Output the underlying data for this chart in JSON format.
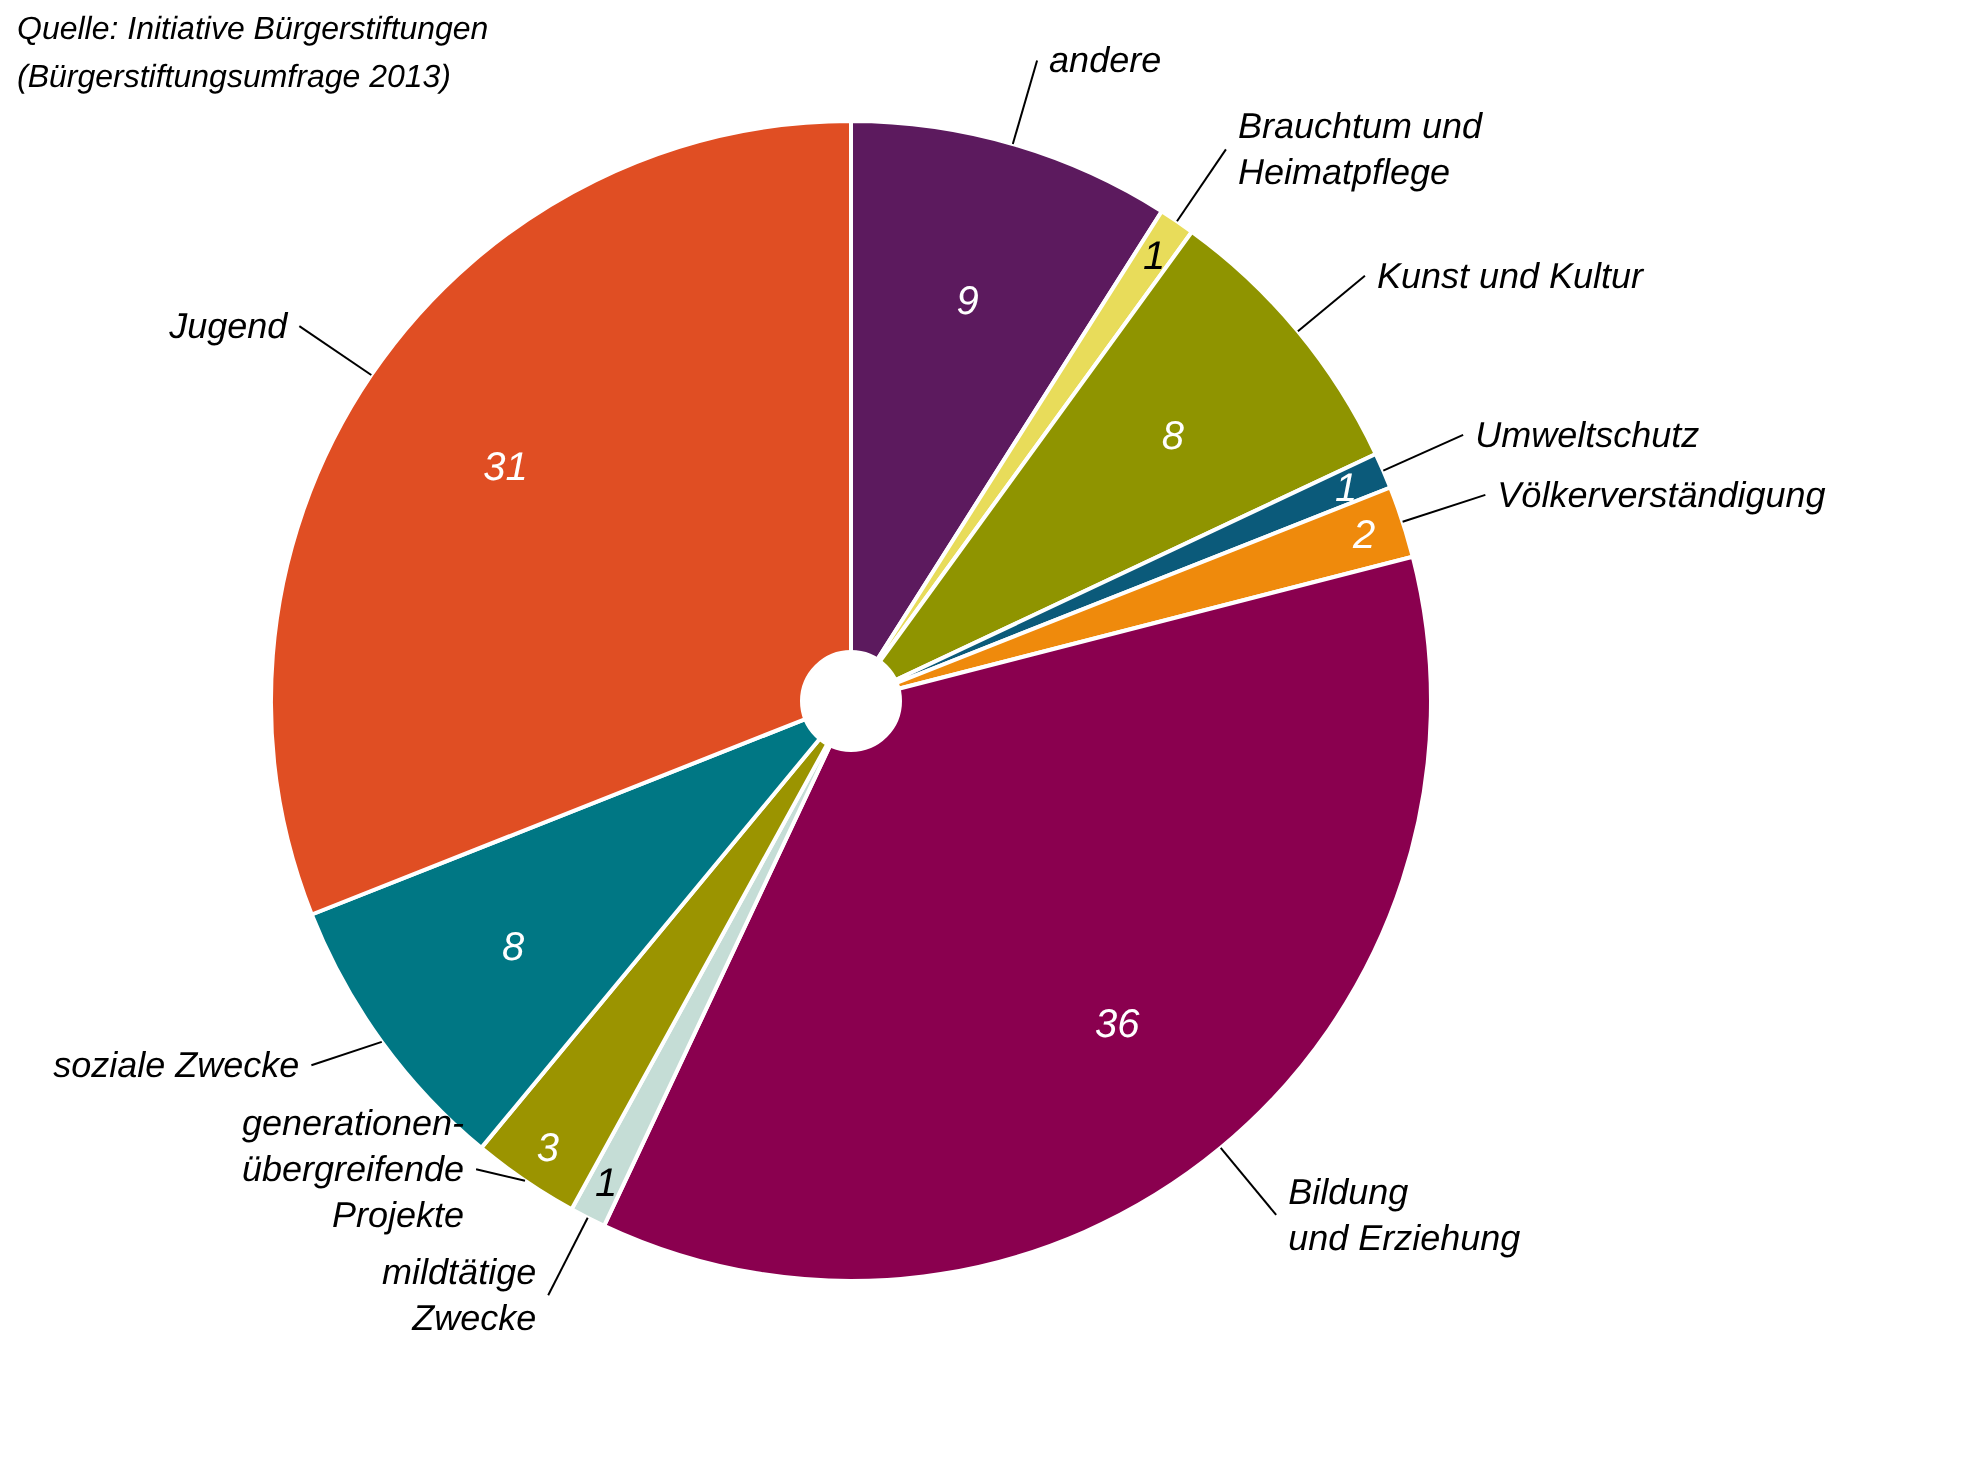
{
  "chart_data": {
    "type": "pie",
    "categories": [
      "andere",
      "Brauchtum und\nHeimatpflege",
      "Kunst und Kultur",
      "Umweltschutz",
      "Völkerverständigung",
      "Bildung\nund Erziehung",
      "mildtätige\nZwecke",
      "generationen-\nübergreifende\nProjekte",
      "soziale Zwecke",
      "Jugend"
    ],
    "values": [
      9,
      1,
      8,
      1,
      2,
      36,
      1,
      3,
      8,
      31
    ],
    "colors": [
      "#5c1a5e",
      "#e8dc5a",
      "#8f9400",
      "#0b5a7a",
      "#ef8a0c",
      "#8a004f",
      "#c5ddd6",
      "#9b9400",
      "#007784",
      "#e04e23"
    ],
    "data_labels": true,
    "annotations": [
      "Quelle: Initiative Bürgerstiftungen\n(Bürgerstiftungsumfrage 2013)"
    ]
  }
}
